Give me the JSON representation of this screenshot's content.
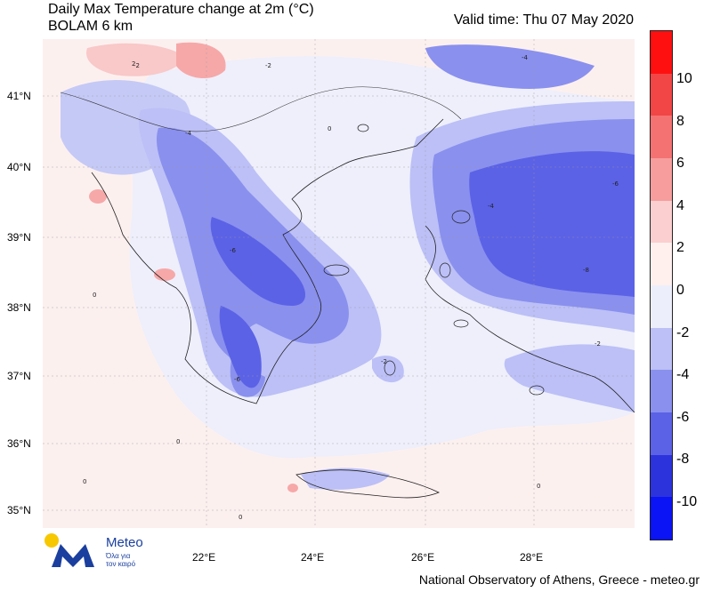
{
  "title": "Daily Max Temperature change at 2m (°C)",
  "subtitle": "BOLAM 6 km",
  "valid_time": "Valid time: Thu 07 May 2020",
  "lat_labels": [
    "41°N",
    "40°N",
    "39°N",
    "38°N",
    "37°N",
    "36°N",
    "35°N"
  ],
  "lon_labels": [
    "22°E",
    "24°E",
    "26°E",
    "28°E"
  ],
  "colorbar": {
    "labels": [
      "10",
      "8",
      "6",
      "4",
      "2",
      "0",
      "-2",
      "-4",
      "-6",
      "-8",
      "-10"
    ],
    "colors": [
      "#ff1010",
      "#f24545",
      "#f47272",
      "#f79d9d",
      "#fbcfcf",
      "#fff0ee",
      "#eceefc",
      "#bcc0f6",
      "#8a90ee",
      "#5b62e6",
      "#2c33dd",
      "#0a14f5"
    ]
  },
  "contour_labels": [
    "-2",
    "-4",
    "-6",
    "-8",
    "0",
    "2"
  ],
  "logo": {
    "name": "Meteo",
    "tagline_1": "Όλα για",
    "tagline_2": "τον καιρό"
  },
  "footer": "National Observatory of Athens, Greece - meteo.gr"
}
